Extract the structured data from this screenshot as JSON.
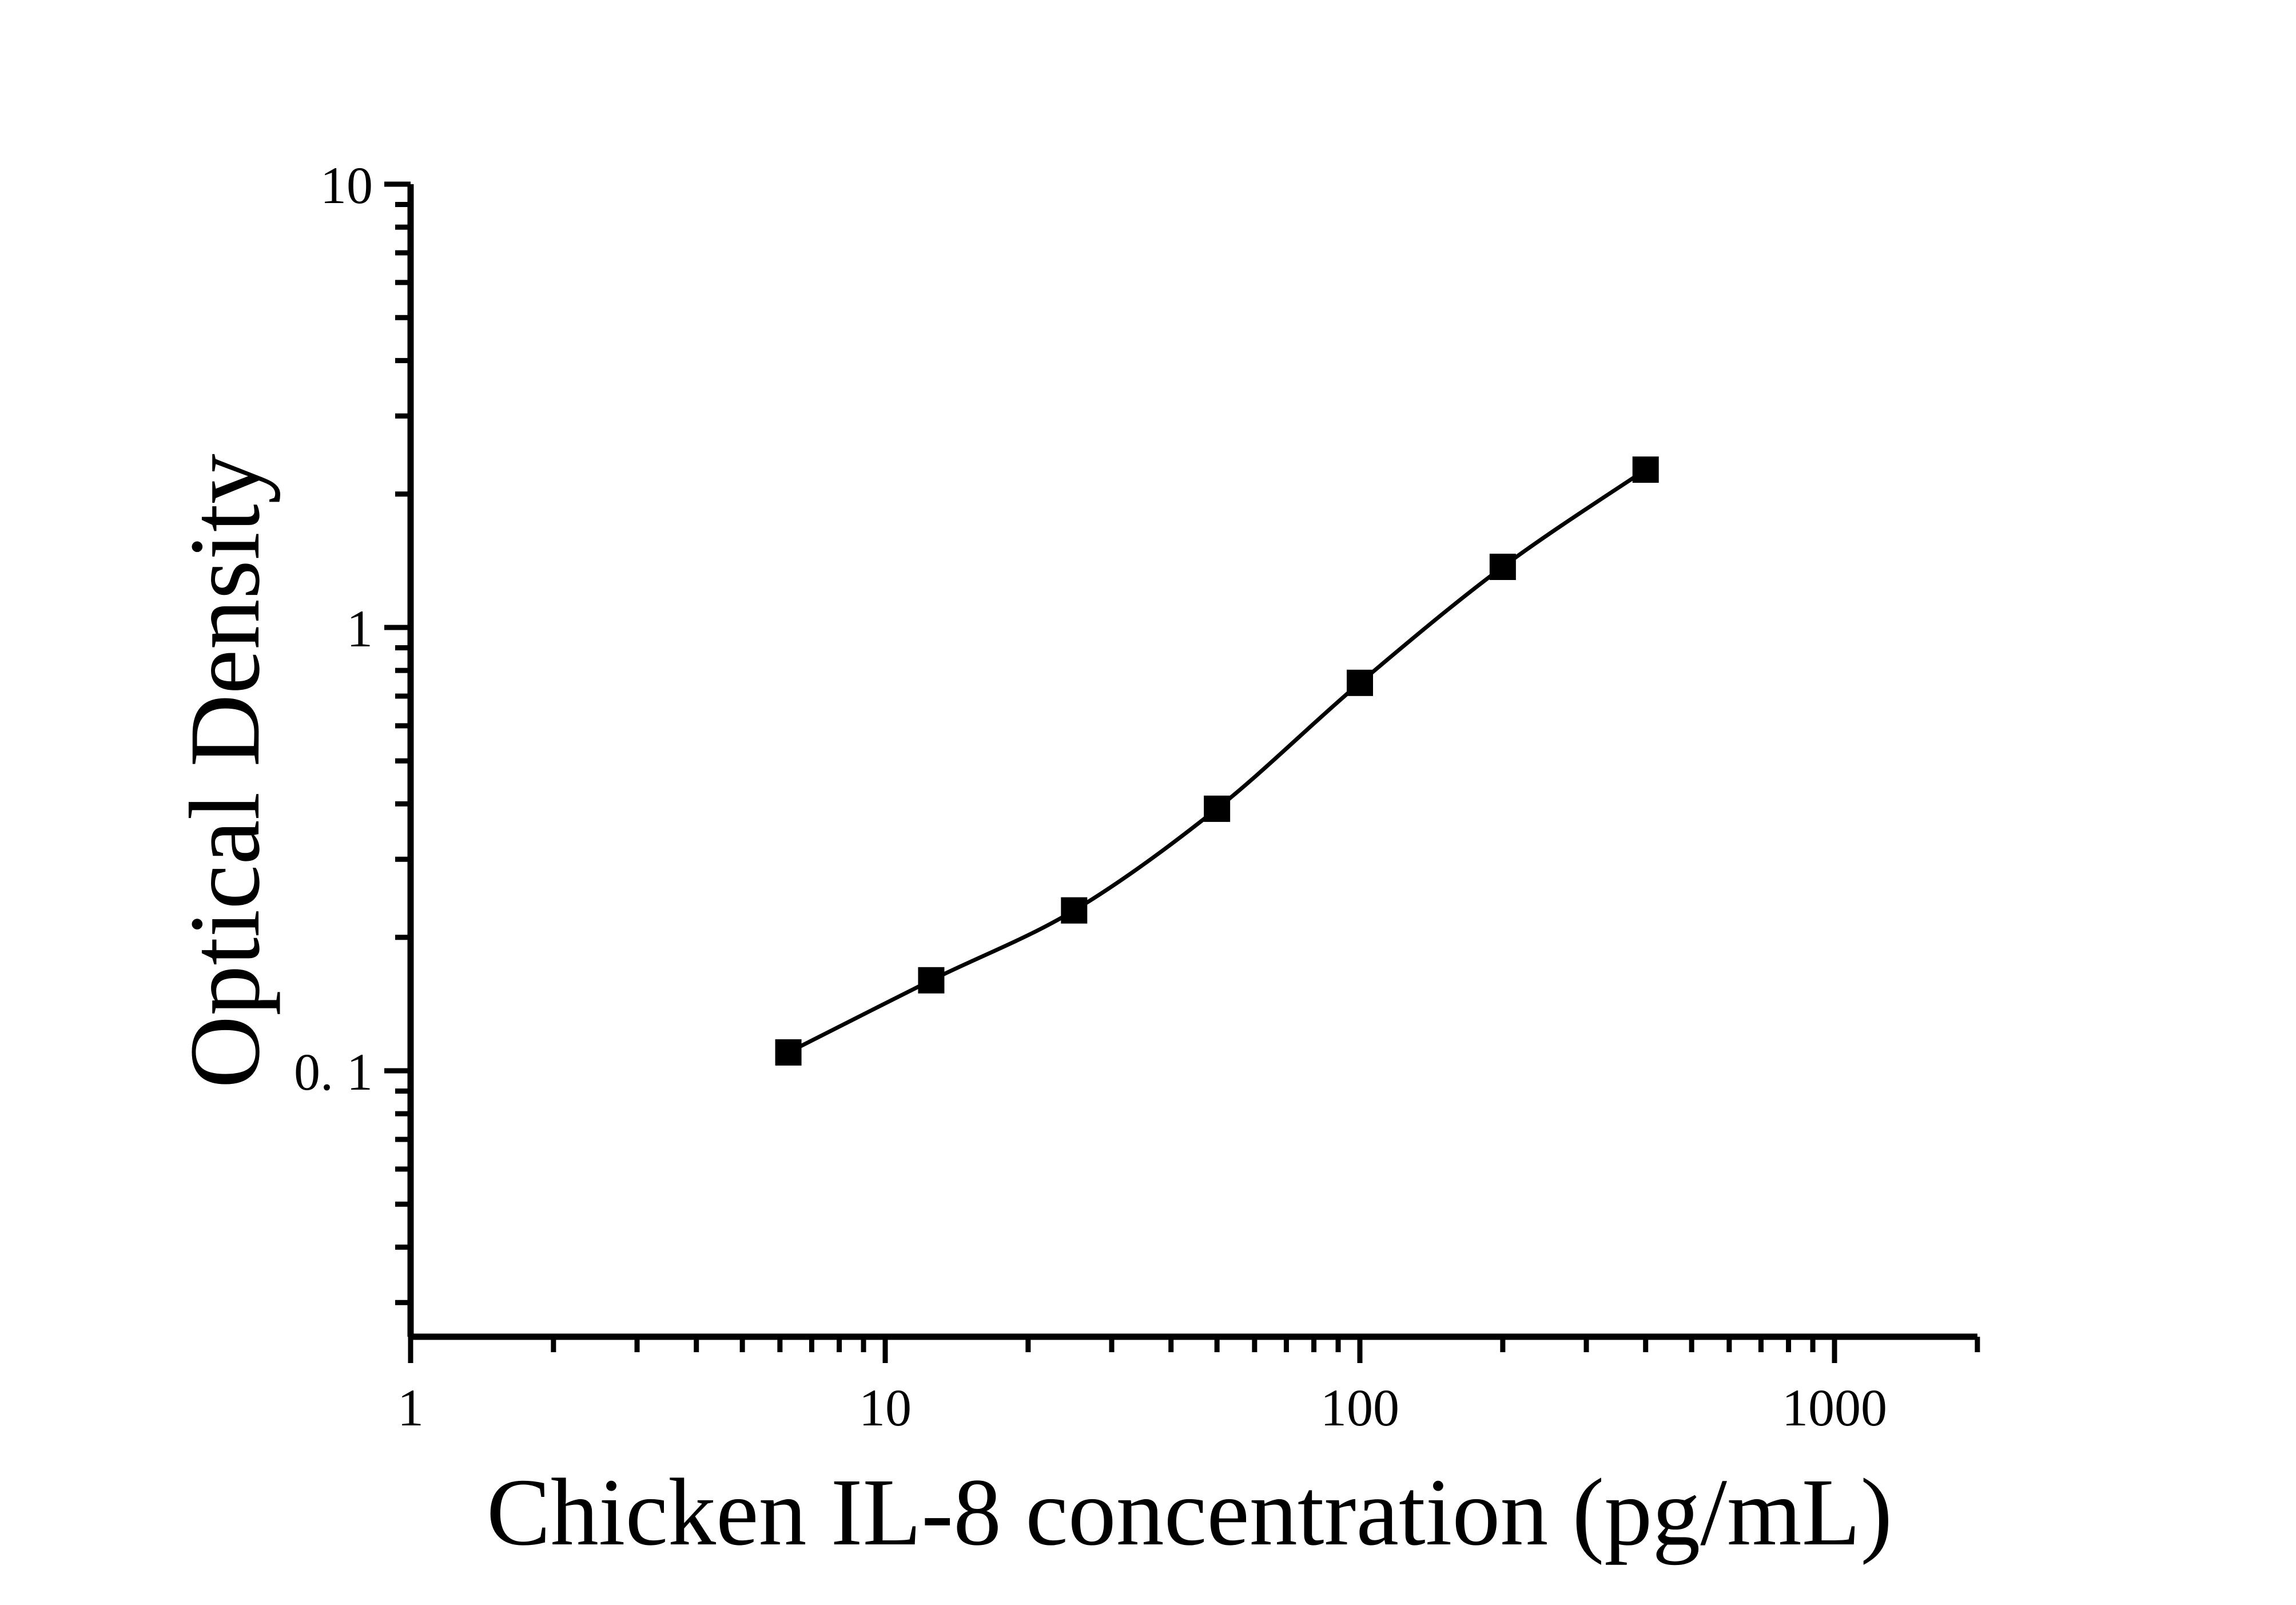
{
  "figure": {
    "background_color": "#ffffff",
    "ink_color": "#000000"
  },
  "chart_data": {
    "type": "scatter",
    "title": "",
    "xlabel": "Chicken IL-8 concentration (pg/mL)",
    "ylabel": "Optical Density",
    "x_scale": "log",
    "y_scale": "log",
    "xlim": [
      1,
      2000
    ],
    "ylim": [
      0.025,
      10
    ],
    "grid": false,
    "legend": null,
    "marker": "filled-square",
    "line": "smooth-fit-through-points",
    "x_major_ticks": [
      1,
      10,
      100,
      1000
    ],
    "x_major_tick_labels": [
      "1",
      "10",
      "100",
      "1000"
    ],
    "y_major_ticks": [
      10,
      1,
      0.1
    ],
    "y_major_tick_labels": [
      "10",
      "1",
      "0. 1"
    ],
    "series": [
      {
        "name": "standard-curve",
        "x": [
          6.25,
          12.5,
          25,
          50,
          100,
          200,
          400
        ],
        "y": [
          0.11,
          0.16,
          0.23,
          0.39,
          0.75,
          1.37,
          2.27
        ]
      }
    ]
  }
}
